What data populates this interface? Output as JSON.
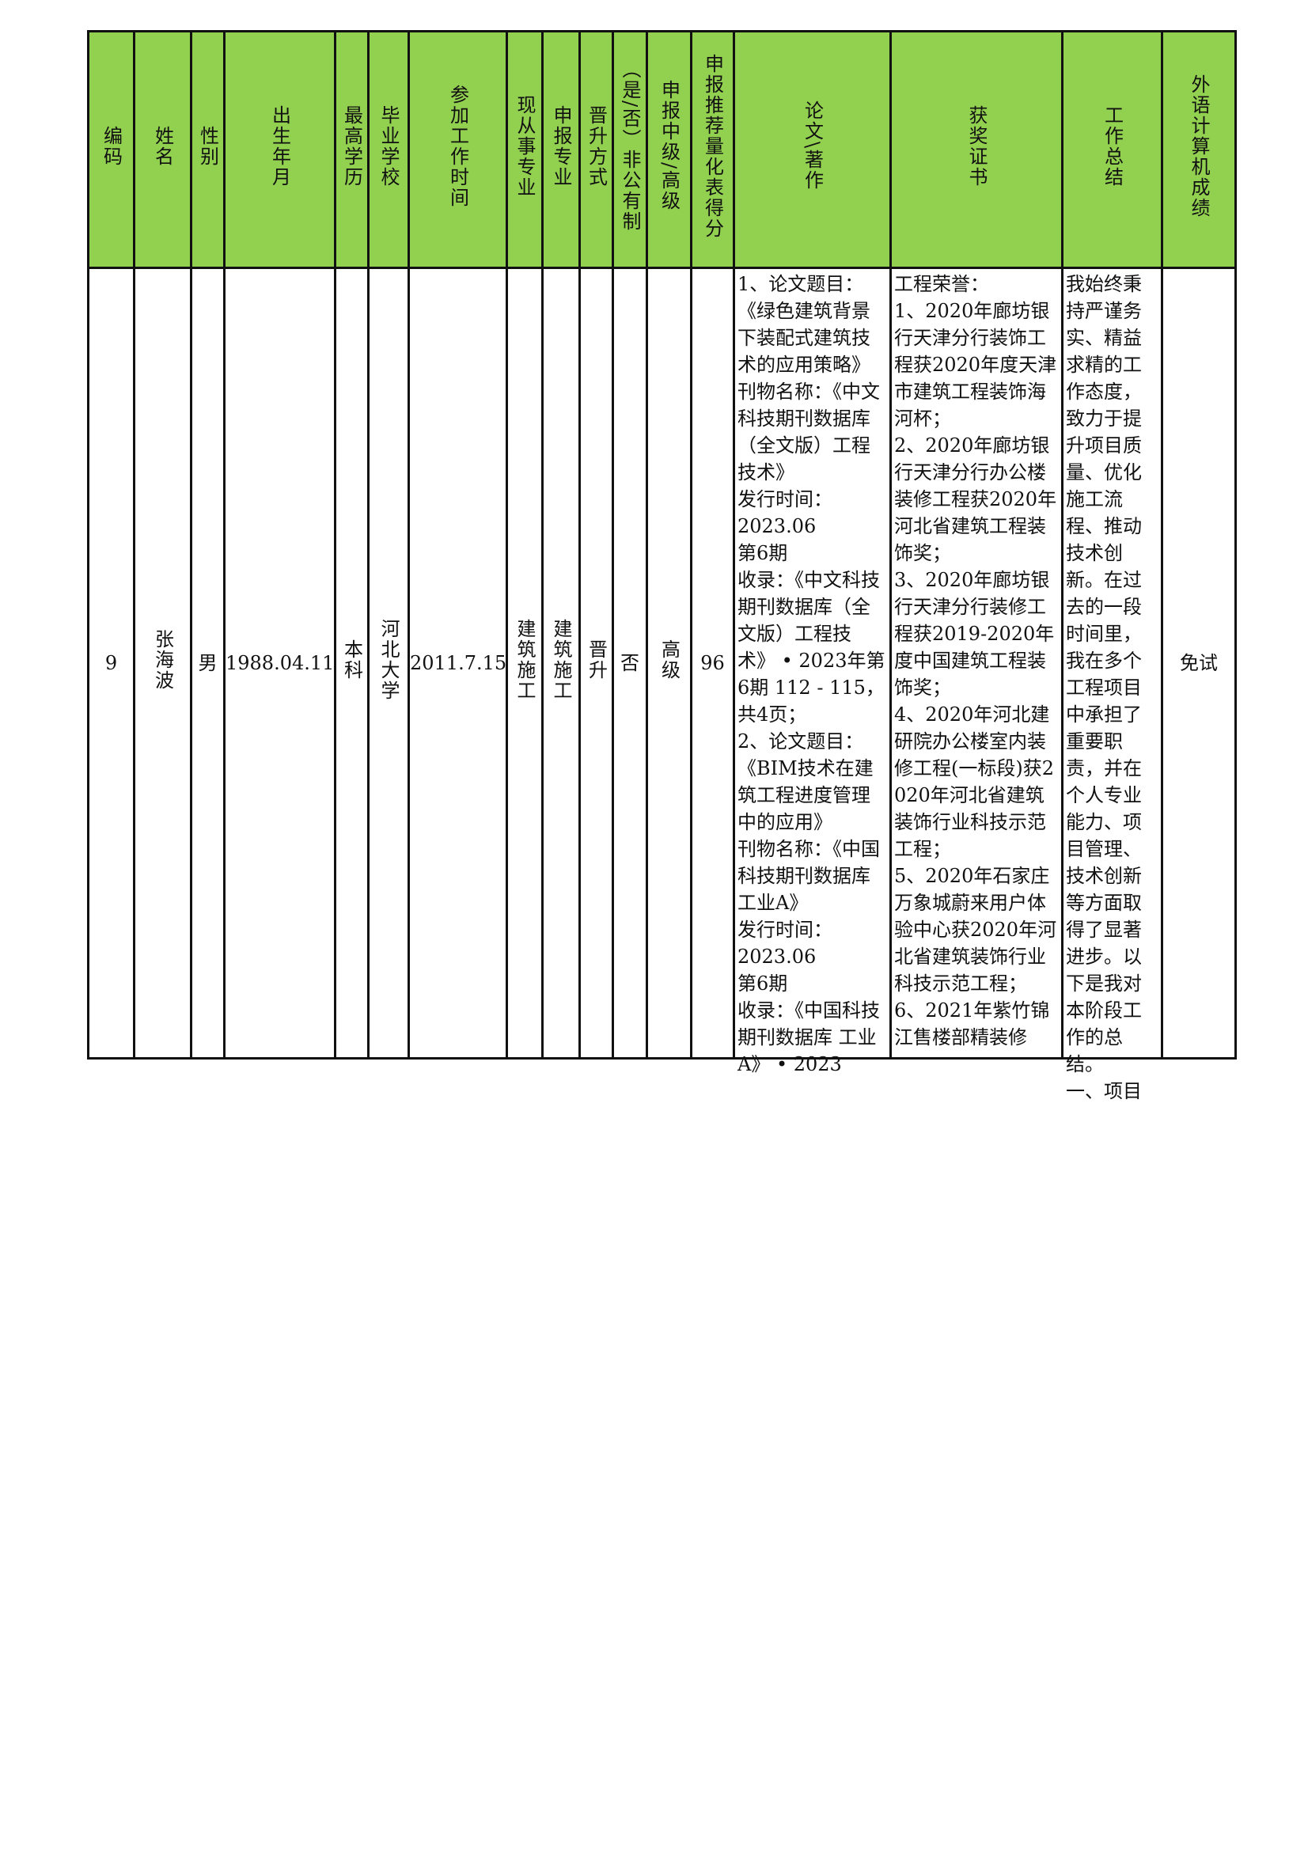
{
  "table": {
    "header_color": "#92d050",
    "headers": [
      "编码",
      "姓名",
      "性别",
      "出生年月",
      "最高学历",
      "毕业学校",
      "参加工作时间",
      "现从事专业",
      "申报专业",
      "晋升方式",
      "（是/否）非公有制",
      "申报中级/高级",
      "申报推荐量化表得分",
      "论文\\著作",
      "获奖证书",
      "工作总结",
      "外语计算机成绩"
    ],
    "row": {
      "id": "9",
      "name": "张海波",
      "gender": "男",
      "birth": "1988.04.11",
      "education": "本科",
      "school": "河北大学",
      "work_start": "2011.7.15",
      "current_major": "建筑施工",
      "apply_major": "建筑施工",
      "promotion": "晋升",
      "non_public": "否",
      "level": "高级",
      "score": "96",
      "papers": "1、论文题目：\n《绿色建筑背景下装配式建筑技术的应用策略》\n刊物名称：《中文科技期刊数据库（全文版）工程技术》\n发行时间：\n2023.06\n第6期\n收录：《中文科技期刊数据库（全文版）工程技术》 • 2023年第6期 112 - 115，  共4页；\n2、论文题目：\n《BIM技术在建筑工程进度管理中的应用》\n刊物名称：《中国科技期刊数据库 工业A》\n发行时间：\n2023.06\n第6期\n收录：《中国科技期刊数据库 工业A》 • 2023",
      "awards": "工程荣誉：\n1、2020年廊坊银行天津分行装饰工程获2020年度天津市建筑工程装饰海河杯；\n2、2020年廊坊银行天津分行办公楼装修工程获2020年河北省建筑工程装饰奖；\n3、2020年廊坊银行天津分行装修工程获2019-2020年度中国建筑工程装饰奖；\n4、2020年河北建研院办公楼室内装修工程(一标段)获2020年河北省建筑装饰行业科技示范工程；\n5、2020年石家庄万象城蔚来用户体验中心获2020年河北省建筑装饰行业科技示范工程；\n6、2021年紫竹锦江售楼部精装修",
      "summary": "我始终秉持严谨务实、精益求精的工作态度，致力于提升项目质量、优化施工流程、推动技术创新。在过去的一段时间里，我在多个工程项目中承担了重要职责，并在个人专业能力、项目管理、技术创新等方面取得了显著进步。以下是我对本阶段工作的总结。\n一、项目",
      "foreign_computer": "免试"
    }
  }
}
